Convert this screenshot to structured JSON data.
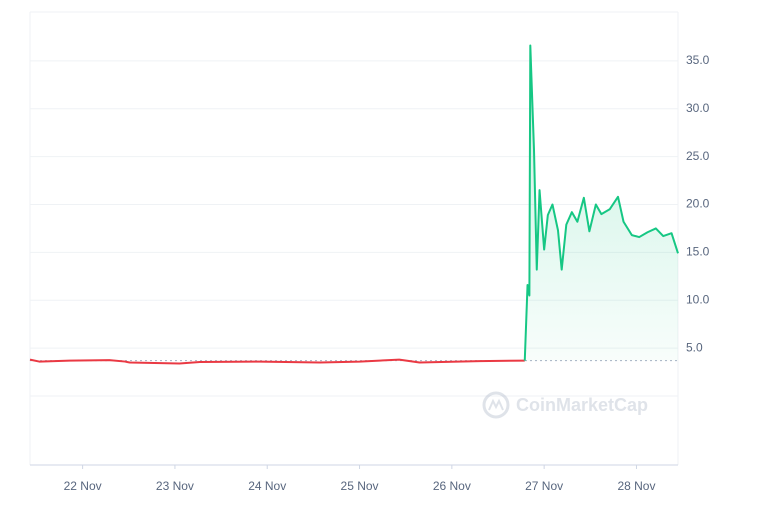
{
  "chart_data": {
    "type": "line",
    "watermark": "CoinMarketCap",
    "xlim": [
      -0.57,
      6.45
    ],
    "ylim": [
      -7.2,
      40.1
    ],
    "xticks": [
      {
        "value": 0,
        "label": "22 Nov"
      },
      {
        "value": 1,
        "label": "23 Nov"
      },
      {
        "value": 2,
        "label": "24 Nov"
      },
      {
        "value": 3,
        "label": "25 Nov"
      },
      {
        "value": 4,
        "label": "26 Nov"
      },
      {
        "value": 5,
        "label": "27 Nov"
      },
      {
        "value": 6,
        "label": "28 Nov"
      }
    ],
    "yticks": [
      {
        "value": 5,
        "label": "5.0"
      },
      {
        "value": 10,
        "label": "10.0"
      },
      {
        "value": 15,
        "label": "15.0"
      },
      {
        "value": 20,
        "label": "20.0"
      },
      {
        "value": 25,
        "label": "25.0"
      },
      {
        "value": 30,
        "label": "30.0"
      },
      {
        "value": 35,
        "label": "35.0"
      }
    ],
    "grid": true,
    "baseline": 3.7,
    "series": [
      {
        "color": "#ea3943",
        "x": [
          -0.57,
          -0.47,
          -0.14,
          0.29,
          0.46,
          0.51,
          1.05,
          1.27,
          1.92,
          2.57,
          3.0,
          3.43,
          3.65,
          4.3,
          4.79
        ],
        "values": [
          3.8,
          3.6,
          3.7,
          3.75,
          3.6,
          3.5,
          3.4,
          3.55,
          3.6,
          3.5,
          3.6,
          3.8,
          3.5,
          3.65,
          3.7
        ]
      },
      {
        "color": "#16c784",
        "x": [
          4.79,
          4.82,
          4.84,
          4.85,
          4.89,
          4.92,
          4.95,
          5.0,
          5.04,
          5.09,
          5.15,
          5.19,
          5.24,
          5.3,
          5.36,
          5.43,
          5.49,
          5.56,
          5.62,
          5.71,
          5.8,
          5.86,
          5.95,
          6.03,
          6.12,
          6.21,
          6.29,
          6.38,
          6.45
        ],
        "values": [
          3.7,
          11.6,
          10.5,
          36.6,
          25.7,
          13.2,
          21.5,
          15.3,
          18.9,
          20,
          17.3,
          13.2,
          17.9,
          19.2,
          18.2,
          20.7,
          17.2,
          20,
          19,
          19.5,
          20.8,
          18.2,
          16.8,
          16.6,
          17.1,
          17.5,
          16.7,
          17,
          14.9
        ]
      }
    ]
  }
}
